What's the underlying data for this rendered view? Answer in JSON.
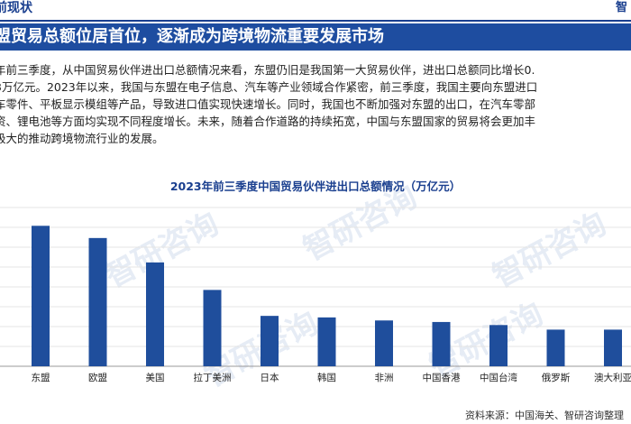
{
  "header": {
    "section_title": "前现状",
    "logo_text": "智"
  },
  "heading": "盟贸易总额位居首位，逐渐成为跨境物流重要发展市场",
  "paragraph_lines": [
    "年前三季度，从中国贸易伙伴进出口总额情况来看，东盟仍旧是我国第一大贸易伙伴，进出口总额同比增长0.",
    "3万亿元。2023年以来，我国与东盟在电子信息、汽车等产业领域合作紧密，前三季度，我国主要向东盟进口",
    "车零件、平板显示模组等产品，导致进口值实现快速增长。同时，我国也不断加强对东盟的出口，在汽车零部",
    "资、锂电池等方面均实现不同程度增长。未来，随着合作道路的持续拓宽，中国与东盟国家的贸易将会更加丰",
    "极大的推动跨境物流行业的发展。"
  ],
  "watermark_text": "智研咨询",
  "source": "资料来源：中国海关、智研咨询整理",
  "colors": {
    "bar": "#1f4e9c",
    "heading_bg": "#1e4da0",
    "title": "#1a3f8f"
  },
  "chart_data": {
    "type": "bar",
    "title": "2023年前三季度中国贸易伙伴进出口总额情况（万亿元）",
    "categories": [
      "东盟",
      "欧盟",
      "美国",
      "拉丁美洲",
      "日本",
      "韩国",
      "非洲",
      "中国香港",
      "中国台湾",
      "俄罗斯",
      "澳大利亚"
    ],
    "values": [
      4.6,
      4.2,
      3.4,
      2.5,
      1.65,
      1.6,
      1.5,
      1.45,
      1.35,
      1.2,
      1.2
    ],
    "ylim": [
      0,
      5.2
    ],
    "grid": true
  }
}
